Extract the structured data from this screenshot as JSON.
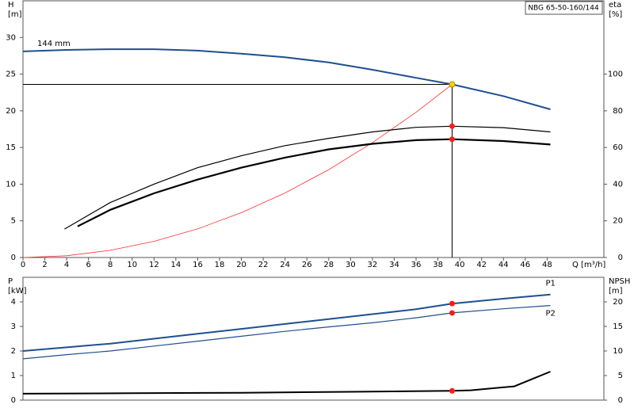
{
  "chart_data": [
    {
      "type": "line",
      "title": "NBG 65-50-160/144",
      "y_label": "H",
      "y_unit": "[m]",
      "y2_label": "eta",
      "y2_unit": "[%]",
      "x_label": "Q [m³/h]",
      "xlim": [
        0,
        53.2
      ],
      "ylim": [
        0,
        35
      ],
      "y2lim": [
        0,
        140
      ],
      "xticks": [
        0,
        2,
        4,
        6,
        8,
        10,
        12,
        14,
        16,
        18,
        20,
        22,
        24,
        26,
        28,
        30,
        32,
        34,
        36,
        38,
        40,
        42,
        44,
        46,
        48
      ],
      "yticks": [
        0,
        5,
        10,
        15,
        20,
        25,
        30
      ],
      "y2ticks": [
        0,
        20,
        40,
        60,
        80,
        100
      ],
      "series": [
        {
          "name": "144 mm",
          "color": "#1f4f8f",
          "line_width": 2,
          "label_position": "start",
          "x": [
            0,
            4,
            8,
            12,
            16,
            20,
            24,
            28,
            32,
            36,
            39.3,
            44,
            48.3
          ],
          "values": [
            28.1,
            28.3,
            28.4,
            28.4,
            28.2,
            27.8,
            27.3,
            26.6,
            25.6,
            24.5,
            23.6,
            22.0,
            20.2
          ]
        },
        {
          "color": "#ff3030",
          "line_width": 0.8,
          "x": [
            0,
            4,
            8,
            12,
            16,
            20,
            24,
            28,
            32,
            36,
            39.3
          ],
          "values": [
            0,
            0.24,
            0.98,
            2.2,
            3.91,
            6.11,
            8.8,
            11.98,
            15.65,
            19.8,
            23.6
          ]
        },
        {
          "color": "#000000",
          "line_width": 1.2,
          "axis": "y2",
          "x": [
            3.8,
            8,
            12,
            16,
            20,
            24,
            28,
            32,
            36,
            39.3,
            44,
            48.3
          ],
          "values": [
            15.5,
            30,
            40,
            49,
            55.5,
            61,
            65,
            68.5,
            71,
            71.6,
            70.8,
            68.5
          ]
        },
        {
          "color": "#000000",
          "line_width": 2.2,
          "axis": "y2",
          "x": [
            5,
            8,
            12,
            16,
            20,
            24,
            28,
            32,
            36,
            39.3,
            44,
            48.3
          ],
          "values": [
            17,
            26,
            35,
            42.5,
            49,
            54.5,
            59,
            62,
            64,
            64.5,
            63.5,
            61.6
          ]
        }
      ],
      "points": [
        {
          "x": 39.3,
          "y": 23.6,
          "color": "#ffd400",
          "guides": true
        },
        {
          "x": 39.3,
          "y": 71.6,
          "color": "#ff1a1a",
          "axis": "y2"
        },
        {
          "x": 39.3,
          "y": 64.5,
          "color": "#ff1a1a",
          "axis": "y2"
        }
      ]
    },
    {
      "type": "line",
      "y_label": "P",
      "y_unit": "[kW]",
      "y2_label": "NPSH",
      "y2_unit": "[m]",
      "xlim": [
        0,
        53.2
      ],
      "ylim": [
        0,
        5
      ],
      "y2lim": [
        0,
        25
      ],
      "yticks": [
        0,
        1,
        2,
        3,
        4
      ],
      "y2ticks": [
        0,
        5,
        10,
        15,
        20
      ],
      "series": [
        {
          "name": "P1",
          "color": "#1f4f8f",
          "line_width": 2,
          "label_position": "end",
          "x": [
            0,
            4,
            8,
            12,
            16,
            20,
            24,
            28,
            32,
            36,
            39.3,
            44,
            48.3
          ],
          "values": [
            2.0,
            2.15,
            2.3,
            2.5,
            2.7,
            2.9,
            3.1,
            3.3,
            3.5,
            3.7,
            3.93,
            4.13,
            4.3
          ]
        },
        {
          "name": "P2",
          "color": "#1f4f8f",
          "line_width": 1.2,
          "label_position": "end",
          "x": [
            0,
            4,
            8,
            12,
            16,
            20,
            24,
            28,
            32,
            36,
            39.3,
            44,
            48.3
          ],
          "values": [
            1.68,
            1.85,
            2.0,
            2.2,
            2.4,
            2.6,
            2.8,
            2.98,
            3.15,
            3.35,
            3.55,
            3.72,
            3.85
          ]
        },
        {
          "color": "#000000",
          "line_width": 2,
          "axis": "y2",
          "x": [
            0,
            10,
            20,
            30,
            39.3,
            41,
            45,
            48.3
          ],
          "values": [
            1.3,
            1.4,
            1.5,
            1.7,
            1.9,
            2.0,
            2.8,
            5.8
          ]
        }
      ],
      "points": [
        {
          "x": 39.3,
          "y": 3.93,
          "color": "#ff1a1a"
        },
        {
          "x": 39.3,
          "y": 3.55,
          "color": "#ff1a1a"
        },
        {
          "x": 39.3,
          "y": 1.9,
          "color": "#ff1a1a",
          "axis": "y2"
        }
      ]
    }
  ]
}
